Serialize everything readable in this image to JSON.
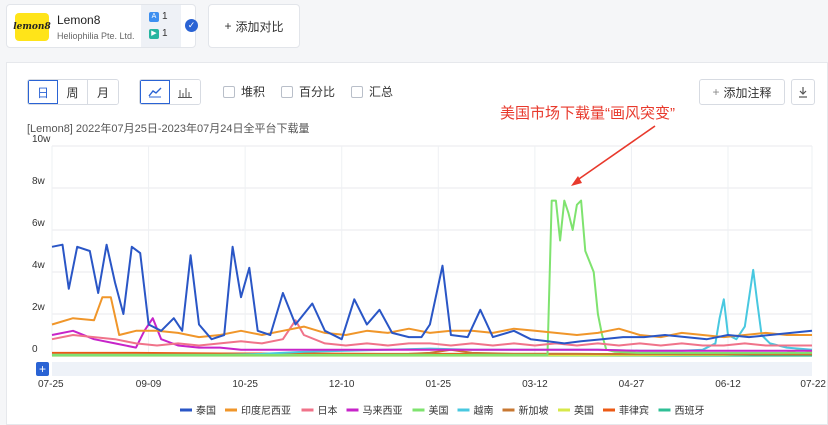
{
  "app": {
    "name": "Lemon8",
    "company": "Heliophilia Pte. Ltd.",
    "logo_text": "lemon8",
    "appstore_count": "1",
    "googleplay_count": "1",
    "add_compare_label": "添加对比"
  },
  "toolbar": {
    "period_day": "日",
    "period_week": "周",
    "period_month": "月",
    "active_period": "日",
    "stack_label": "堆积",
    "percent_label": "百分比",
    "summary_label": "汇总",
    "add_note_label": "添加注释",
    "add_note_icon": "plus-icon",
    "download_icon": "download-icon"
  },
  "chart_data": {
    "type": "line",
    "subtitle": "[Lemon8]  2022年07月25日-2023年07月24日全平台下载量",
    "annotation": "美国市场下载量“画风突变”",
    "y_ticks": [
      "0",
      "2w",
      "4w",
      "6w",
      "8w",
      "10w"
    ],
    "ylim": [
      0,
      100000
    ],
    "x_ticks": [
      "07-25",
      "09-09",
      "10-25",
      "12-10",
      "01-25",
      "03-12",
      "04-27",
      "06-12",
      "07-22"
    ],
    "x_tick_day_index": [
      0,
      46,
      92,
      138,
      184,
      230,
      276,
      322,
      362
    ],
    "grid": true,
    "legend_position": "bottom",
    "annotation_color": "#e8392c",
    "series": [
      {
        "name": "泰国",
        "color": "#2a56c6",
        "points": [
          [
            0,
            52000
          ],
          [
            5,
            53000
          ],
          [
            8,
            32000
          ],
          [
            12,
            52000
          ],
          [
            18,
            50000
          ],
          [
            22,
            30000
          ],
          [
            26,
            53000
          ],
          [
            30,
            35000
          ],
          [
            34,
            20000
          ],
          [
            38,
            52000
          ],
          [
            42,
            49000
          ],
          [
            46,
            15000
          ],
          [
            52,
            12000
          ],
          [
            58,
            18000
          ],
          [
            62,
            12000
          ],
          [
            66,
            48000
          ],
          [
            70,
            15000
          ],
          [
            76,
            8000
          ],
          [
            82,
            10000
          ],
          [
            86,
            52000
          ],
          [
            90,
            28000
          ],
          [
            94,
            42000
          ],
          [
            98,
            12000
          ],
          [
            104,
            10000
          ],
          [
            110,
            30000
          ],
          [
            116,
            15000
          ],
          [
            124,
            25000
          ],
          [
            130,
            12000
          ],
          [
            138,
            8000
          ],
          [
            144,
            27000
          ],
          [
            150,
            15000
          ],
          [
            156,
            22000
          ],
          [
            162,
            11000
          ],
          [
            170,
            9000
          ],
          [
            176,
            9000
          ],
          [
            180,
            15000
          ],
          [
            186,
            43000
          ],
          [
            190,
            10000
          ],
          [
            198,
            9000
          ],
          [
            204,
            22000
          ],
          [
            210,
            9000
          ],
          [
            220,
            12000
          ],
          [
            228,
            8000
          ],
          [
            236,
            7000
          ],
          [
            244,
            6000
          ],
          [
            252,
            7000
          ],
          [
            262,
            8000
          ],
          [
            272,
            9000
          ],
          [
            282,
            9000
          ],
          [
            292,
            10000
          ],
          [
            302,
            9000
          ],
          [
            312,
            8000
          ],
          [
            322,
            10000
          ],
          [
            332,
            9000
          ],
          [
            342,
            10000
          ],
          [
            352,
            11000
          ],
          [
            362,
            12000
          ]
        ]
      },
      {
        "name": "印度尼西亚",
        "color": "#f0962a",
        "points": [
          [
            0,
            15000
          ],
          [
            10,
            18000
          ],
          [
            20,
            17000
          ],
          [
            24,
            28000
          ],
          [
            28,
            28000
          ],
          [
            32,
            10000
          ],
          [
            40,
            12000
          ],
          [
            50,
            12000
          ],
          [
            60,
            11000
          ],
          [
            70,
            9000
          ],
          [
            80,
            10000
          ],
          [
            90,
            12000
          ],
          [
            100,
            10000
          ],
          [
            110,
            12000
          ],
          [
            120,
            14000
          ],
          [
            130,
            11000
          ],
          [
            140,
            10000
          ],
          [
            150,
            12000
          ],
          [
            160,
            11000
          ],
          [
            170,
            13000
          ],
          [
            180,
            11000
          ],
          [
            190,
            12000
          ],
          [
            200,
            12000
          ],
          [
            210,
            11000
          ],
          [
            220,
            13000
          ],
          [
            230,
            12000
          ],
          [
            240,
            11000
          ],
          [
            250,
            10000
          ],
          [
            260,
            11000
          ],
          [
            270,
            13000
          ],
          [
            280,
            10000
          ],
          [
            290,
            9000
          ],
          [
            300,
            11000
          ],
          [
            310,
            10000
          ],
          [
            320,
            9000
          ],
          [
            330,
            10000
          ],
          [
            340,
            11000
          ],
          [
            350,
            10000
          ],
          [
            362,
            10000
          ]
        ]
      },
      {
        "name": "日本",
        "color": "#f0738a",
        "points": [
          [
            0,
            8000
          ],
          [
            10,
            10000
          ],
          [
            20,
            9000
          ],
          [
            30,
            8000
          ],
          [
            40,
            6000
          ],
          [
            50,
            5000
          ],
          [
            60,
            6000
          ],
          [
            70,
            5000
          ],
          [
            80,
            6000
          ],
          [
            90,
            7000
          ],
          [
            100,
            6000
          ],
          [
            110,
            8000
          ],
          [
            116,
            17000
          ],
          [
            120,
            10000
          ],
          [
            130,
            6000
          ],
          [
            140,
            5000
          ],
          [
            150,
            6000
          ],
          [
            160,
            5000
          ],
          [
            170,
            6000
          ],
          [
            180,
            6000
          ],
          [
            190,
            5000
          ],
          [
            200,
            6000
          ],
          [
            210,
            5000
          ],
          [
            220,
            6000
          ],
          [
            230,
            5000
          ],
          [
            240,
            6000
          ],
          [
            250,
            5000
          ],
          [
            260,
            6000
          ],
          [
            270,
            5000
          ],
          [
            280,
            6000
          ],
          [
            290,
            5000
          ],
          [
            300,
            6000
          ],
          [
            310,
            5000
          ],
          [
            320,
            5000
          ],
          [
            330,
            6000
          ],
          [
            340,
            5000
          ],
          [
            350,
            5000
          ],
          [
            362,
            5000
          ]
        ]
      },
      {
        "name": "马来西亚",
        "color": "#c724c9",
        "points": [
          [
            0,
            10000
          ],
          [
            10,
            12000
          ],
          [
            20,
            8000
          ],
          [
            30,
            6000
          ],
          [
            40,
            4000
          ],
          [
            44,
            12000
          ],
          [
            48,
            18000
          ],
          [
            52,
            8000
          ],
          [
            60,
            5000
          ],
          [
            70,
            4000
          ],
          [
            80,
            4000
          ],
          [
            90,
            3000
          ],
          [
            100,
            3000
          ],
          [
            120,
            3000
          ],
          [
            140,
            3000
          ],
          [
            160,
            3000
          ],
          [
            180,
            3000
          ],
          [
            200,
            3000
          ],
          [
            220,
            3000
          ],
          [
            240,
            3000
          ],
          [
            260,
            3000
          ],
          [
            280,
            2500
          ],
          [
            300,
            2500
          ],
          [
            320,
            2500
          ],
          [
            340,
            2500
          ],
          [
            362,
            2500
          ]
        ]
      },
      {
        "name": "美国",
        "color": "#7fe36f",
        "points": [
          [
            0,
            500
          ],
          [
            40,
            500
          ],
          [
            80,
            500
          ],
          [
            120,
            500
          ],
          [
            160,
            500
          ],
          [
            200,
            500
          ],
          [
            230,
            500
          ],
          [
            236,
            500
          ],
          [
            238,
            74000
          ],
          [
            240,
            74000
          ],
          [
            242,
            55000
          ],
          [
            244,
            74000
          ],
          [
            246,
            68000
          ],
          [
            248,
            60000
          ],
          [
            250,
            72000
          ],
          [
            252,
            74000
          ],
          [
            254,
            50000
          ],
          [
            256,
            45000
          ],
          [
            258,
            40000
          ],
          [
            260,
            20000
          ],
          [
            262,
            10000
          ],
          [
            264,
            3000
          ],
          [
            268,
            2000
          ],
          [
            280,
            1500
          ],
          [
            300,
            1500
          ],
          [
            320,
            1500
          ],
          [
            340,
            1500
          ],
          [
            362,
            1500
          ]
        ]
      },
      {
        "name": "越南",
        "color": "#48c8e0",
        "points": [
          [
            0,
            500
          ],
          [
            80,
            500
          ],
          [
            100,
            1000
          ],
          [
            120,
            2000
          ],
          [
            140,
            2500
          ],
          [
            160,
            3000
          ],
          [
            180,
            3500
          ],
          [
            200,
            3000
          ],
          [
            220,
            3000
          ],
          [
            240,
            3000
          ],
          [
            260,
            3000
          ],
          [
            280,
            2500
          ],
          [
            300,
            2500
          ],
          [
            310,
            3000
          ],
          [
            316,
            6000
          ],
          [
            318,
            18000
          ],
          [
            320,
            27000
          ],
          [
            322,
            10000
          ],
          [
            326,
            8000
          ],
          [
            330,
            14000
          ],
          [
            334,
            41000
          ],
          [
            336,
            25000
          ],
          [
            338,
            10000
          ],
          [
            342,
            6000
          ],
          [
            350,
            4000
          ],
          [
            362,
            3000
          ]
        ]
      },
      {
        "name": "新加坡",
        "color": "#c87832",
        "points": [
          [
            0,
            500
          ],
          [
            60,
            500
          ],
          [
            120,
            500
          ],
          [
            150,
            700
          ],
          [
            170,
            1000
          ],
          [
            180,
            1500
          ],
          [
            190,
            3000
          ],
          [
            200,
            1500
          ],
          [
            220,
            1000
          ],
          [
            250,
            1000
          ],
          [
            280,
            800
          ],
          [
            310,
            800
          ],
          [
            340,
            800
          ],
          [
            362,
            800
          ]
        ]
      },
      {
        "name": "英国",
        "color": "#d7e84a",
        "points": [
          [
            0,
            300
          ],
          [
            60,
            300
          ],
          [
            120,
            300
          ],
          [
            180,
            300
          ],
          [
            240,
            300
          ],
          [
            260,
            300
          ],
          [
            270,
            400
          ],
          [
            280,
            400
          ],
          [
            300,
            500
          ],
          [
            320,
            600
          ],
          [
            330,
            800
          ],
          [
            340,
            1200
          ],
          [
            350,
            1500
          ],
          [
            356,
            3000
          ],
          [
            362,
            2000
          ]
        ]
      },
      {
        "name": "菲律宾",
        "color": "#ec5a14",
        "points": [
          [
            0,
            1500
          ],
          [
            40,
            1500
          ],
          [
            80,
            1200
          ],
          [
            120,
            1200
          ],
          [
            160,
            1000
          ],
          [
            200,
            1000
          ],
          [
            240,
            1000
          ],
          [
            280,
            900
          ],
          [
            320,
            800
          ],
          [
            362,
            800
          ]
        ]
      },
      {
        "name": "西班牙",
        "color": "#2fbf96",
        "points": [
          [
            0,
            200
          ],
          [
            80,
            200
          ],
          [
            160,
            200
          ],
          [
            240,
            200
          ],
          [
            320,
            200
          ],
          [
            362,
            200
          ]
        ]
      }
    ]
  }
}
